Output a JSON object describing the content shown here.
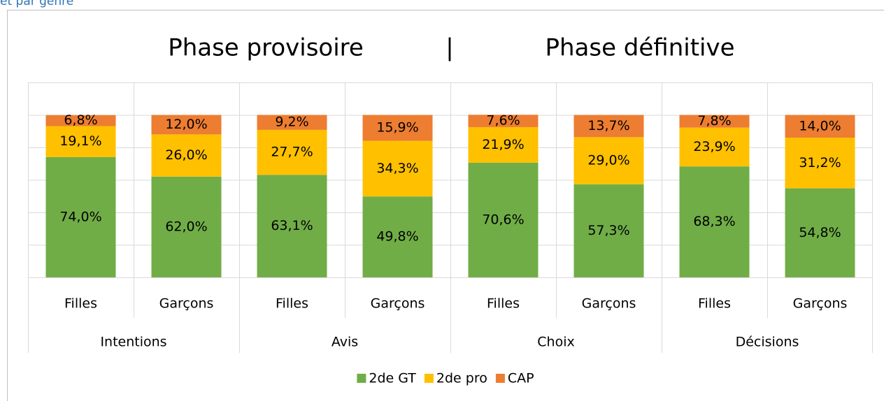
{
  "heading": "et par genre",
  "chart_data": {
    "type": "stacked_bar",
    "titles": [
      "Phase provisoire",
      "|",
      "Phase définitive"
    ],
    "categories": [
      "Filles",
      "Garçons",
      "Filles",
      "Garçons",
      "Filles",
      "Garçons",
      "Filles",
      "Garçons"
    ],
    "groups": [
      "Intentions",
      "Avis",
      "Choix",
      "Décisions"
    ],
    "series": [
      {
        "name": "2de GT",
        "color": "#70ad47",
        "values": [
          74.0,
          62.0,
          63.1,
          49.8,
          70.6,
          57.3,
          68.3,
          54.8
        ],
        "value_labels": [
          "74,0%",
          "62,0%",
          "63,1%",
          "49,8%",
          "70,6%",
          "57,3%",
          "68,3%",
          "54,8%"
        ]
      },
      {
        "name": "2de pro",
        "color": "#ffc000",
        "values": [
          19.1,
          26.0,
          27.7,
          34.3,
          21.9,
          29.0,
          23.9,
          31.2
        ],
        "value_labels": [
          "19,1%",
          "26,0%",
          "27,7%",
          "34,3%",
          "21,9%",
          "29,0%",
          "23,9%",
          "31,2%"
        ]
      },
      {
        "name": "CAP",
        "color": "#ed7d31",
        "values": [
          6.8,
          12.0,
          9.2,
          15.9,
          7.6,
          13.7,
          7.8,
          14.0
        ],
        "value_labels": [
          "6,8%",
          "12,0%",
          "9,2%",
          "15,9%",
          "7,6%",
          "13,7%",
          "7,8%",
          "14,0%"
        ]
      }
    ],
    "ylim": [
      0,
      120
    ],
    "yticks": [
      0,
      20,
      40,
      60,
      80,
      100,
      120
    ],
    "grid": true,
    "legend": "bottom"
  }
}
